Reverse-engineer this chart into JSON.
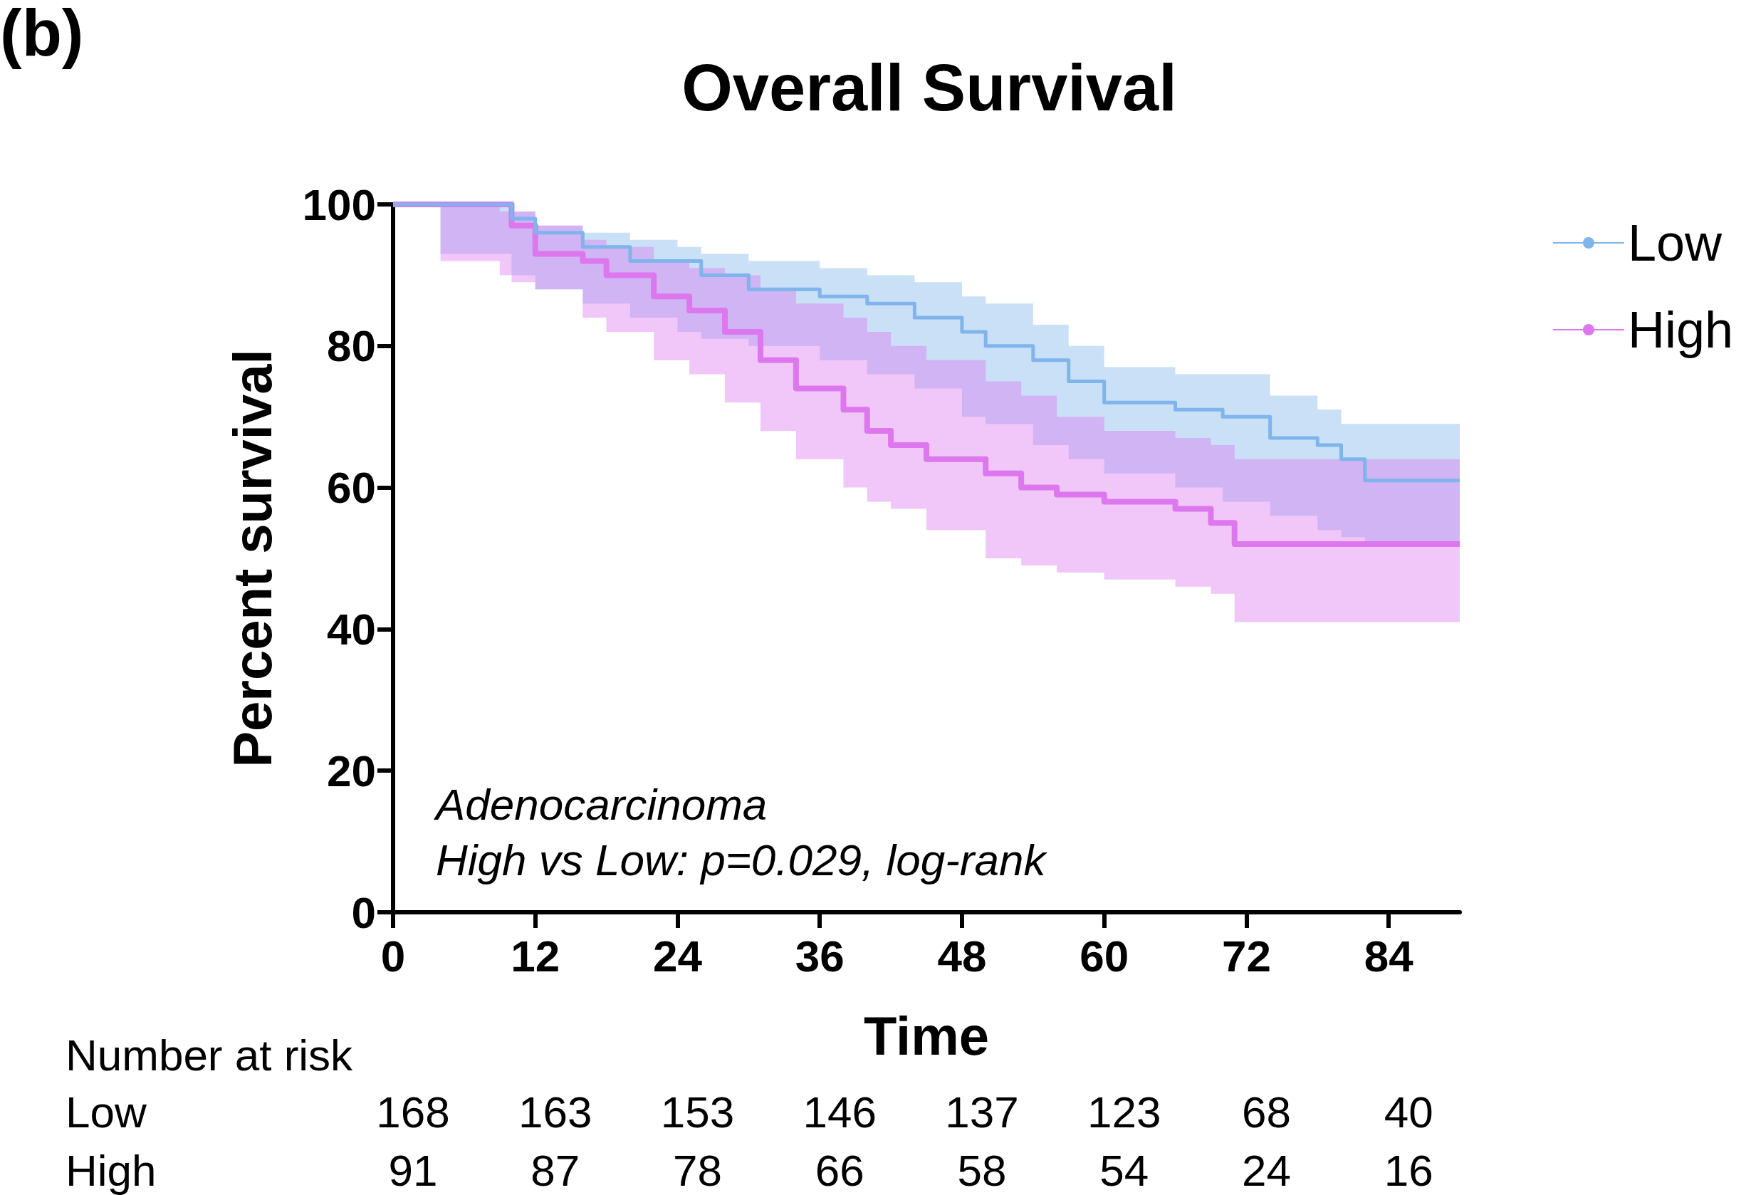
{
  "chart_data": {
    "type": "step",
    "title": "Overall Survival",
    "xlabel": "Time",
    "ylabel": "Percent survival",
    "xlim": [
      0,
      90
    ],
    "xticks": [
      0,
      12,
      24,
      36,
      48,
      60,
      72,
      84
    ],
    "ylim": [
      0,
      100
    ],
    "yticks": [
      0,
      20,
      40,
      60,
      80,
      100
    ],
    "grid": false,
    "legend": "top right",
    "annotations": [
      "(b)",
      "Adenocarcinoma",
      "High vs Low: p=0.029, log-rank",
      "Number at risk",
      "Low 168 163 153 146 137 123 68 40",
      "High 91 87 78 66 58 54 24 16"
    ],
    "series": [
      {
        "name": "Low",
        "color": "#7fb4ec",
        "x": [
          0,
          4,
          10,
          12,
          16,
          20,
          24,
          26,
          30,
          36,
          40,
          44,
          48,
          50,
          54,
          57,
          60,
          66,
          70,
          74,
          78,
          80,
          82,
          90
        ],
        "values": [
          100,
          100,
          98,
          96,
          94,
          92,
          92,
          90,
          88,
          87,
          86,
          84,
          82,
          80,
          78,
          75,
          72,
          71,
          70,
          67,
          66,
          64,
          61,
          61
        ],
        "upper": [
          null,
          100,
          99,
          97,
          96,
          95,
          94,
          93,
          92,
          91,
          90,
          89,
          87,
          86,
          83,
          80,
          77,
          76,
          76,
          73,
          71,
          69,
          69,
          69
        ],
        "lower": [
          null,
          93,
          90,
          88,
          86,
          84,
          82,
          81,
          80,
          78,
          76,
          74,
          70,
          69,
          66,
          64,
          62,
          60,
          58,
          56,
          54,
          53,
          52,
          52
        ]
      },
      {
        "name": "High",
        "color": "#dd77ee",
        "x": [
          0,
          4,
          9,
          10,
          12,
          16,
          18,
          22,
          25,
          28,
          31,
          34,
          38,
          40,
          42,
          45,
          50,
          53,
          56,
          60,
          66,
          69,
          71,
          90
        ],
        "values": [
          100,
          100,
          100,
          97,
          93,
          92,
          90,
          87,
          85,
          82,
          78,
          74,
          71,
          68,
          66,
          64,
          62,
          60,
          59,
          58,
          57,
          55,
          52,
          52
        ],
        "upper": [
          null,
          100,
          99,
          99,
          97,
          95,
          94,
          92,
          91,
          90,
          88,
          86,
          84,
          82,
          80,
          78,
          75,
          73,
          70,
          68,
          67,
          66,
          64,
          62
        ],
        "lower": [
          null,
          92,
          90,
          89,
          88,
          84,
          82,
          78,
          76,
          72,
          68,
          64,
          60,
          58,
          57,
          54,
          50,
          49,
          48,
          47,
          46,
          45,
          41,
          41
        ]
      }
    ]
  }
}
